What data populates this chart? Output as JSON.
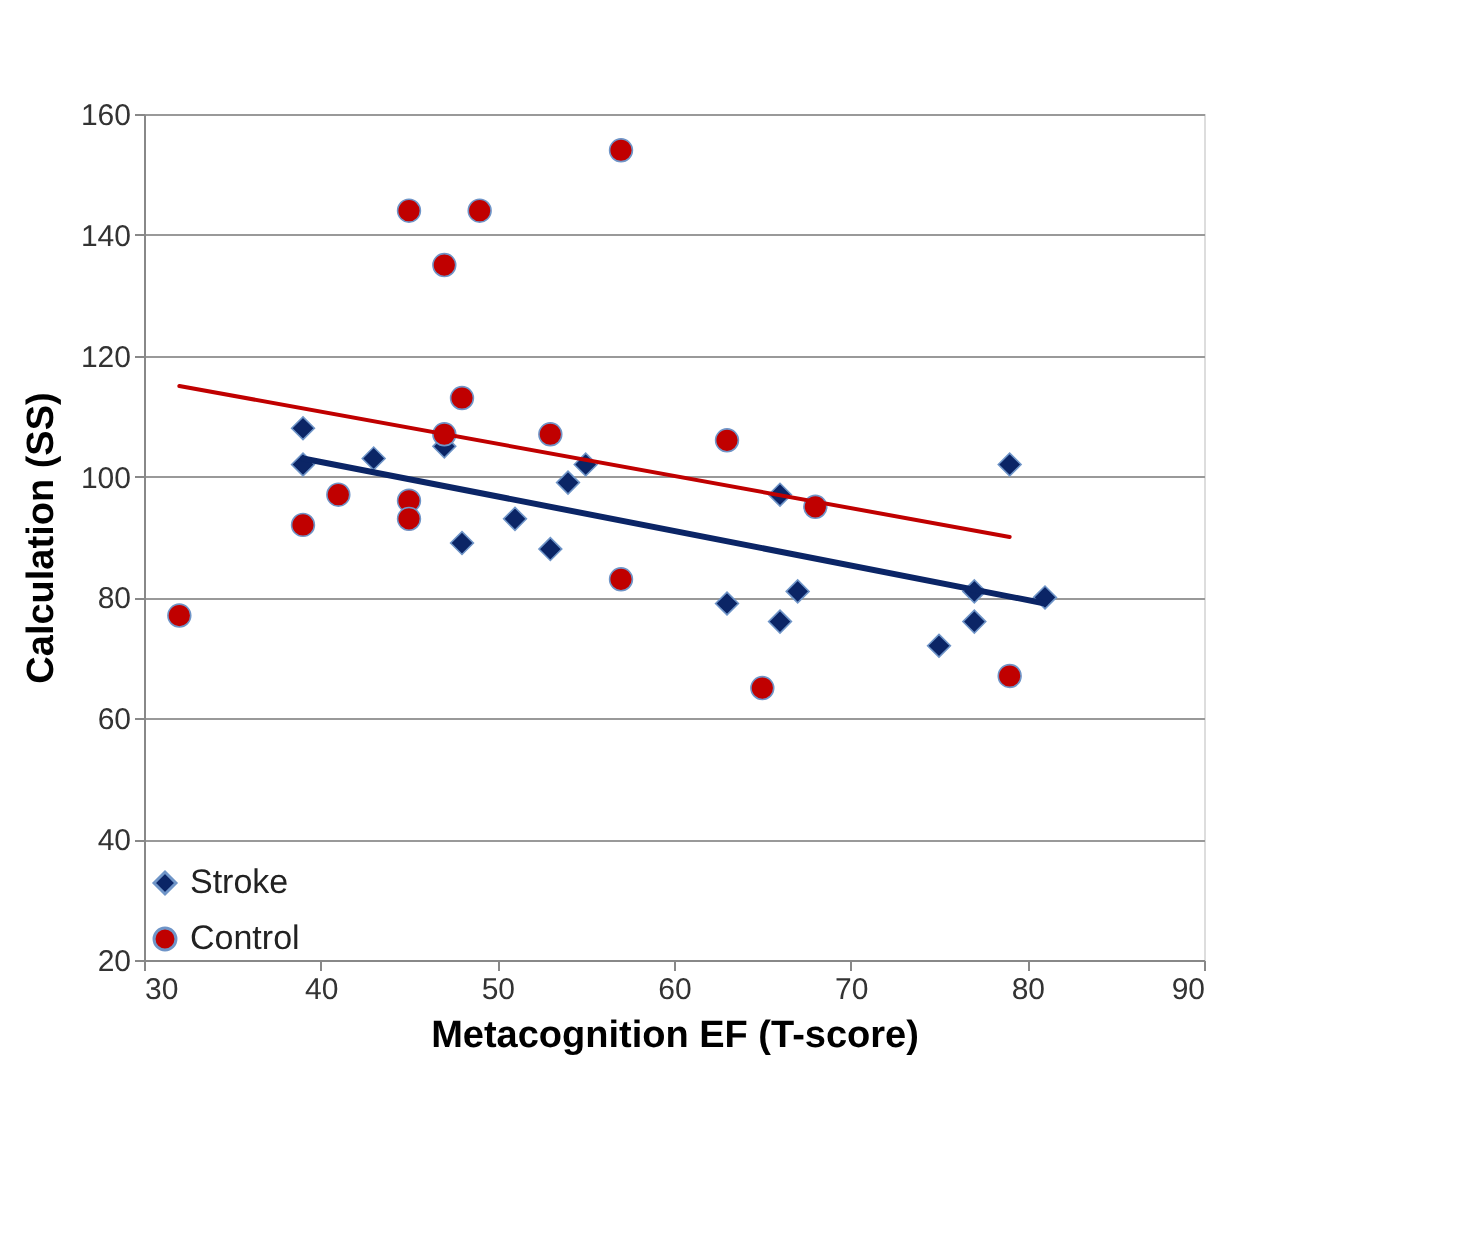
{
  "chart_data": {
    "type": "scatter",
    "xlabel": "Metacognition EF (T-score)",
    "ylabel": "Calculation (SS)",
    "xlim": [
      30,
      90
    ],
    "xticks": [
      30,
      40,
      50,
      60,
      70,
      80,
      90
    ],
    "ylim": [
      20,
      160
    ],
    "yticks": [
      20,
      40,
      60,
      80,
      100,
      120,
      140,
      160
    ],
    "grid": "y",
    "legend": "bottom left",
    "series": [
      {
        "name": "Stroke",
        "color": "#0b2566",
        "marker": "diamond",
        "x": [
          39,
          39,
          43,
          47,
          48,
          51,
          53,
          54,
          55,
          63,
          66,
          66,
          67,
          75,
          77,
          77,
          79,
          81
        ],
        "values": [
          108,
          102,
          103,
          105,
          89,
          93,
          88,
          99,
          102,
          79,
          97,
          76,
          81,
          72,
          81,
          76,
          102,
          80
        ]
      },
      {
        "name": "Control",
        "color": "#c00000",
        "marker": "circle",
        "x": [
          32,
          39,
          41,
          45,
          45,
          45,
          47,
          47,
          48,
          49,
          53,
          57,
          57,
          63,
          65,
          68,
          79
        ],
        "values": [
          77,
          92,
          97,
          144,
          96,
          93,
          135,
          107,
          113,
          144,
          107,
          154,
          83,
          106,
          65,
          95,
          67
        ]
      },
      {
        "type": "line",
        "color": "#0b2566",
        "x": [
          39,
          81
        ],
        "values": [
          103,
          79
        ]
      },
      {
        "type": "line",
        "color": "#c00000",
        "x": [
          32,
          79
        ],
        "values": [
          115,
          90
        ]
      }
    ]
  }
}
